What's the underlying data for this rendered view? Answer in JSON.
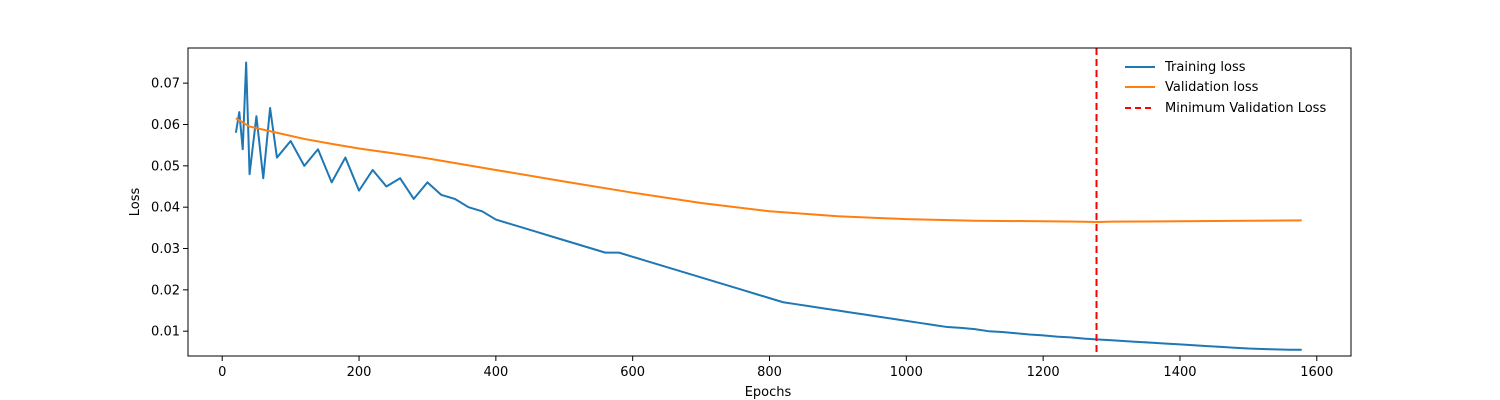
{
  "chart_data": {
    "type": "line",
    "title": "",
    "xlabel": "Epochs",
    "ylabel": "Loss",
    "xlim": [
      -50,
      1650
    ],
    "ylim": [
      0.004,
      0.0785
    ],
    "x_ticks": [
      0,
      200,
      400,
      600,
      800,
      1000,
      1200,
      1400,
      1600
    ],
    "y_ticks": [
      0.01,
      0.02,
      0.03,
      0.04,
      0.05,
      0.06,
      0.07
    ],
    "grid": false,
    "legend_position": "top-right",
    "series": [
      {
        "name": "Training loss",
        "color": "#1f77b4",
        "style": "solid",
        "x": [
          20,
          25,
          30,
          35,
          40,
          50,
          60,
          70,
          80,
          100,
          120,
          140,
          160,
          180,
          200,
          220,
          240,
          260,
          280,
          300,
          320,
          340,
          360,
          380,
          400,
          420,
          440,
          460,
          480,
          500,
          520,
          540,
          560,
          580,
          600,
          620,
          640,
          660,
          680,
          700,
          720,
          740,
          760,
          780,
          800,
          820,
          840,
          860,
          880,
          900,
          920,
          940,
          960,
          980,
          1000,
          1020,
          1040,
          1060,
          1080,
          1100,
          1120,
          1140,
          1160,
          1180,
          1200,
          1220,
          1240,
          1260,
          1280,
          1300,
          1320,
          1340,
          1360,
          1380,
          1400,
          1420,
          1440,
          1460,
          1480,
          1500,
          1520,
          1540,
          1560,
          1578
        ],
        "y": [
          0.058,
          0.063,
          0.054,
          0.075,
          0.048,
          0.062,
          0.047,
          0.064,
          0.052,
          0.056,
          0.05,
          0.054,
          0.046,
          0.052,
          0.044,
          0.049,
          0.045,
          0.047,
          0.042,
          0.046,
          0.043,
          0.042,
          0.04,
          0.039,
          0.037,
          0.036,
          0.035,
          0.034,
          0.033,
          0.032,
          0.031,
          0.03,
          0.029,
          0.029,
          0.028,
          0.027,
          0.026,
          0.025,
          0.024,
          0.023,
          0.022,
          0.021,
          0.02,
          0.019,
          0.018,
          0.017,
          0.0165,
          0.016,
          0.0155,
          0.015,
          0.0145,
          0.014,
          0.0135,
          0.013,
          0.0125,
          0.012,
          0.0115,
          0.011,
          0.0108,
          0.0105,
          0.01,
          0.0098,
          0.0095,
          0.0092,
          0.009,
          0.0087,
          0.0085,
          0.0082,
          0.008,
          0.0078,
          0.0076,
          0.0074,
          0.0072,
          0.007,
          0.0068,
          0.0066,
          0.0064,
          0.0062,
          0.006,
          0.0058,
          0.0057,
          0.0056,
          0.0055,
          0.0055
        ]
      },
      {
        "name": "Validation loss",
        "color": "#ff7f0e",
        "style": "solid",
        "x": [
          20,
          40,
          80,
          120,
          160,
          200,
          260,
          300,
          400,
          500,
          600,
          700,
          800,
          900,
          1000,
          1100,
          1200,
          1250,
          1280,
          1300,
          1400,
          1500,
          1578
        ],
        "y": [
          0.0615,
          0.0595,
          0.058,
          0.0565,
          0.0553,
          0.0542,
          0.0528,
          0.0518,
          0.049,
          0.0462,
          0.0435,
          0.041,
          0.039,
          0.0378,
          0.0371,
          0.0367,
          0.0366,
          0.0365,
          0.0364,
          0.0365,
          0.0366,
          0.0367,
          0.0368
        ]
      },
      {
        "name": "Minimum Validation Loss",
        "color": "#ff0000",
        "style": "dashed",
        "x_value": 1278
      }
    ]
  }
}
